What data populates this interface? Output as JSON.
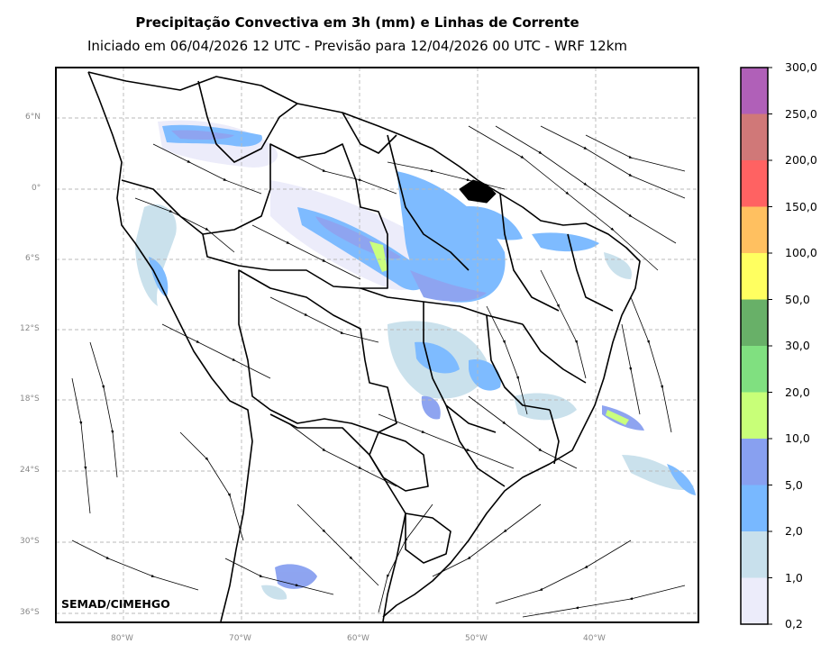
{
  "title": "Precipitação Convectiva em 3h (mm) e Linhas de Corrente",
  "subtitle": "Iniciado em 06/04/2026 12 UTC - Previsão para 12/04/2026 00 UTC - WRF 12km",
  "credit": "SEMAD/CIMEHGO",
  "lat_labels": [
    "6°N",
    "0°",
    "6°S",
    "12°S",
    "18°S",
    "24°S",
    "30°S",
    "36°S"
  ],
  "lon_labels": [
    "80°W",
    "70°W",
    "60°W",
    "50°W",
    "40°W"
  ],
  "colorbar": {
    "labels": [
      "300,0",
      "250,0",
      "200,0",
      "150,0",
      "100,0",
      "50,0",
      "30,0",
      "20,0",
      "10,0",
      "5,0",
      "2,0",
      "1,0",
      "0,2"
    ],
    "colors": [
      "#b060b8",
      "#d07878",
      "#ff6262",
      "#ffc060",
      "#ffff60",
      "#68b068",
      "#80e080",
      "#c8ff78",
      "#88a0f0",
      "#78b8ff",
      "#c8e0ec",
      "#ececfa"
    ]
  },
  "colors": {
    "grid": "#b8b8b8",
    "borders": "#000000",
    "streamlines": "#000000"
  }
}
